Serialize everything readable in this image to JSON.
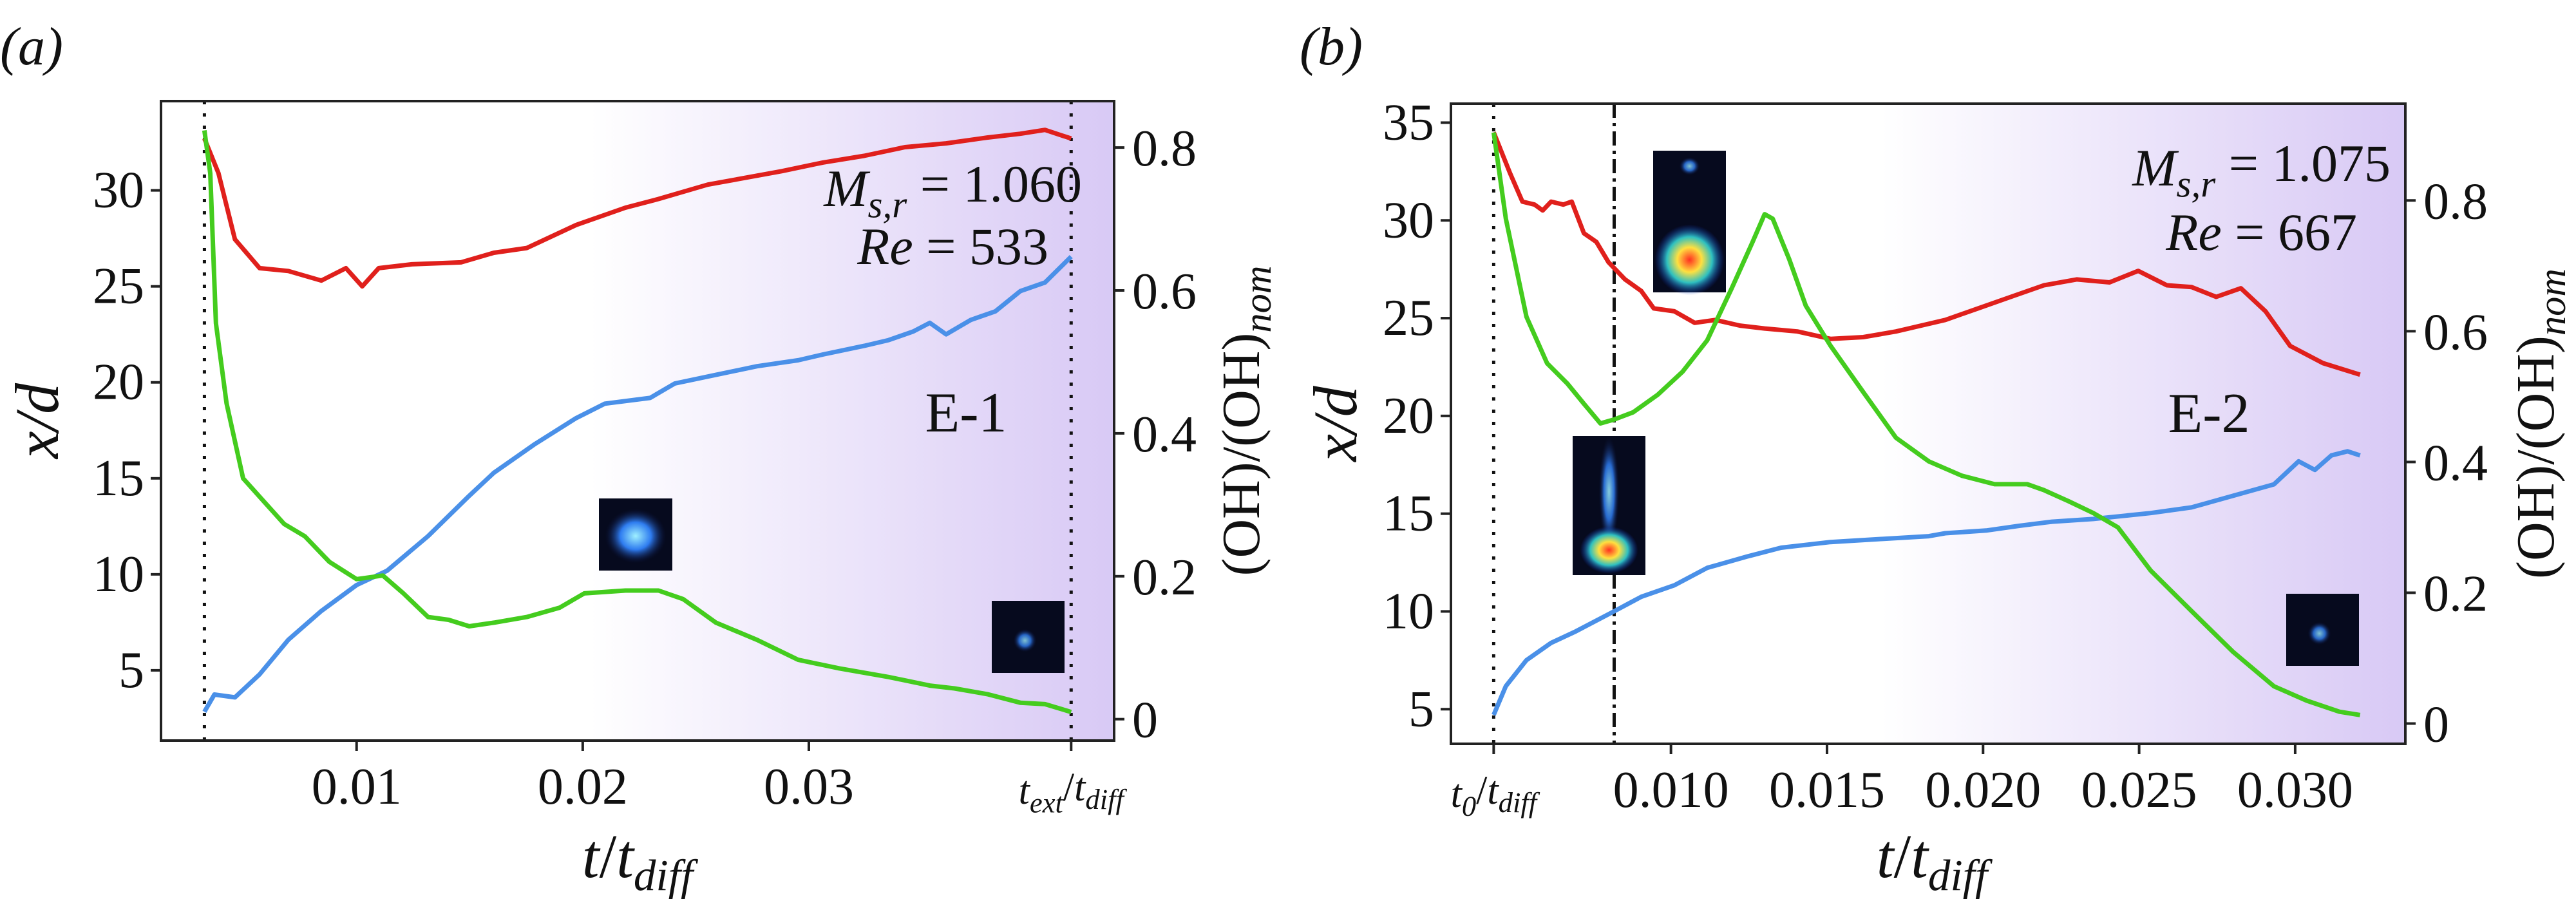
{
  "chart_data": [
    {
      "panel_label": "(a)",
      "type": "line",
      "xlabel": "t/t_diff",
      "ylabel_left": "x/d",
      "ylabel_right": "(OH)/(OH)_nom",
      "xlim": [
        0.00135,
        0.0435
      ],
      "ylim_left": [
        1.34,
        34.65
      ],
      "ylim_right": [
        -0.03,
        0.865
      ],
      "x_ticks": [
        {
          "v": 0.01,
          "label": "0.01"
        },
        {
          "v": 0.02,
          "label": "0.02"
        },
        {
          "v": 0.03,
          "label": "0.03"
        },
        {
          "v": 0.0416,
          "label": "t_ext/t_diff"
        }
      ],
      "y_ticks_left": [
        5,
        10,
        15,
        20,
        25,
        30
      ],
      "y_ticks_right": [
        {
          "v": 0,
          "label": "0"
        },
        {
          "v": 0.2,
          "label": "0.2"
        },
        {
          "v": 0.4,
          "label": "0.4"
        },
        {
          "v": 0.6,
          "label": "0.6"
        },
        {
          "v": 0.8,
          "label": "0.8"
        }
      ],
      "vlines": [
        {
          "x": 0.00327,
          "style": "dotted"
        },
        {
          "x": 0.0416,
          "style": "dotted"
        }
      ],
      "annotations": {
        "mach": "M_s,r = 1.060",
        "re": "Re = 533",
        "case": "E-1"
      },
      "background": "white-to-lavender gradient toward right",
      "insets": [
        "OH image (dome)",
        "OH image (faint kernel)"
      ],
      "series": [
        {
          "color": "#e0201c",
          "axis": "left",
          "t": [
            0.00327,
            0.00389,
            0.00462,
            0.00571,
            0.00698,
            0.00844,
            0.00953,
            0.01025,
            0.01098,
            0.01244,
            0.01462,
            0.01607,
            0.01753,
            0.01971,
            0.02189,
            0.02335,
            0.02553,
            0.0288,
            0.03062,
            0.03244,
            0.03425,
            0.03607,
            0.03789,
            0.03935,
            0.04044,
            0.0416
          ],
          "y": [
            32.7,
            30.9,
            27.45,
            25.95,
            25.8,
            25.3,
            25.95,
            25.0,
            25.95,
            26.15,
            26.25,
            26.75,
            27.0,
            28.2,
            29.1,
            29.55,
            30.3,
            31.0,
            31.45,
            31.8,
            32.25,
            32.45,
            32.75,
            32.95,
            33.15,
            32.7
          ]
        },
        {
          "color": "#4a90e8",
          "axis": "left",
          "t": [
            0.00327,
            0.00371,
            0.00462,
            0.00571,
            0.00698,
            0.00844,
            0.01,
            0.01135,
            0.01316,
            0.01498,
            0.01607,
            0.01789,
            0.01971,
            0.02098,
            0.02298,
            0.02407,
            0.02589,
            0.02771,
            0.02953,
            0.03062,
            0.03244,
            0.03353,
            0.03462,
            0.03535,
            0.03607,
            0.03716,
            0.03825,
            0.03935,
            0.04044,
            0.0416
          ],
          "y": [
            2.84,
            3.74,
            3.59,
            4.79,
            6.59,
            8.09,
            9.44,
            10.19,
            11.99,
            14.09,
            15.29,
            16.79,
            18.14,
            18.89,
            19.19,
            19.94,
            20.39,
            20.84,
            21.15,
            21.45,
            21.9,
            22.2,
            22.65,
            23.1,
            22.5,
            23.25,
            23.7,
            24.75,
            25.2,
            26.55
          ]
        },
        {
          "color": "#44cc1e",
          "axis": "right",
          "t": [
            0.00327,
            0.00353,
            0.00378,
            0.00425,
            0.00498,
            0.00589,
            0.0068,
            0.00771,
            0.0088,
            0.01,
            0.01116,
            0.01207,
            0.01316,
            0.01407,
            0.01498,
            0.01607,
            0.01753,
            0.01898,
            0.02007,
            0.02189,
            0.02335,
            0.02444,
            0.02589,
            0.02771,
            0.02953,
            0.03135,
            0.03353,
            0.03535,
            0.03644,
            0.03789,
            0.03935,
            0.04044,
            0.0416
          ],
          "y": [
            0.824,
            0.764,
            0.554,
            0.442,
            0.337,
            0.305,
            0.273,
            0.256,
            0.22,
            0.196,
            0.201,
            0.176,
            0.143,
            0.139,
            0.13,
            0.135,
            0.143,
            0.156,
            0.176,
            0.18,
            0.18,
            0.168,
            0.135,
            0.111,
            0.083,
            0.071,
            0.059,
            0.047,
            0.043,
            0.035,
            0.023,
            0.021,
            0.01
          ]
        }
      ]
    },
    {
      "panel_label": "(b)",
      "type": "line",
      "xlabel": "t/t_diff",
      "ylabel_left": "x/d",
      "ylabel_right": "(OH)/(OH)_nom",
      "xlim": [
        0.00295,
        0.03353
      ],
      "ylim_left": [
        3.23,
        35.97
      ],
      "ylim_right": [
        -0.031,
        0.948
      ],
      "x_ticks": [
        {
          "v": 0.00432,
          "label": "t_0/t_diff"
        },
        {
          "v": 0.01,
          "label": "0.010"
        },
        {
          "v": 0.015,
          "label": "0.015"
        },
        {
          "v": 0.02,
          "label": "0.020"
        },
        {
          "v": 0.025,
          "label": "0.025"
        },
        {
          "v": 0.03,
          "label": "0.030"
        }
      ],
      "y_ticks_left": [
        5,
        10,
        15,
        20,
        25,
        30,
        35
      ],
      "y_ticks_right": [
        {
          "v": 0,
          "label": "0"
        },
        {
          "v": 0.2,
          "label": "0.2"
        },
        {
          "v": 0.4,
          "label": "0.4"
        },
        {
          "v": 0.6,
          "label": "0.6"
        },
        {
          "v": 0.8,
          "label": "0.8"
        }
      ],
      "vlines": [
        {
          "x": 0.00432,
          "style": "dotted"
        },
        {
          "x": 0.00818,
          "style": "dashdot"
        }
      ],
      "annotations": {
        "mach": "M_s,r = 1.075",
        "re": "Re = 667",
        "case": "E-2"
      },
      "background": "white-to-lavender gradient toward right",
      "insets": [
        "OH image (bulb with kernel)",
        "OH image (elongated plume)",
        "OH image (faint kernel)"
      ],
      "series": [
        {
          "color": "#e0201c",
          "axis": "left",
          "t": [
            0.00432,
            0.00484,
            0.00524,
            0.00563,
            0.00589,
            0.00616,
            0.00655,
            0.00682,
            0.00721,
            0.00761,
            0.008,
            0.00853,
            0.00905,
            0.00945,
            0.01011,
            0.01076,
            0.01142,
            0.01221,
            0.013,
            0.01405,
            0.01511,
            0.01616,
            0.01721,
            0.01879,
            0.01984,
            0.02089,
            0.02195,
            0.023,
            0.02405,
            0.02497,
            0.02589,
            0.02668,
            0.02747,
            0.02826,
            0.02905,
            0.02984,
            0.03089,
            0.03208
          ],
          "y": [
            34.5,
            32.43,
            30.96,
            30.81,
            30.51,
            30.96,
            30.81,
            30.96,
            29.34,
            28.9,
            27.86,
            26.98,
            26.39,
            25.5,
            25.35,
            24.76,
            24.91,
            24.62,
            24.47,
            24.32,
            23.94,
            24.03,
            24.32,
            24.91,
            25.5,
            26.09,
            26.68,
            26.98,
            26.83,
            27.42,
            26.68,
            26.59,
            26.09,
            26.53,
            25.35,
            23.58,
            22.7,
            22.11
          ]
        },
        {
          "color": "#4a90e8",
          "axis": "left",
          "t": [
            0.00432,
            0.00471,
            0.00537,
            0.00616,
            0.00695,
            0.00818,
            0.00905,
            0.01011,
            0.01116,
            0.01247,
            0.01353,
            0.01511,
            0.01668,
            0.01826,
            0.01879,
            0.0201,
            0.02116,
            0.02221,
            0.02353,
            0.02537,
            0.02668,
            0.028,
            0.02932,
            0.03011,
            0.03063,
            0.03116,
            0.03168,
            0.03208
          ],
          "y": [
            4.71,
            6.18,
            7.51,
            8.39,
            8.98,
            10.01,
            10.75,
            11.34,
            12.23,
            12.82,
            13.26,
            13.55,
            13.7,
            13.85,
            14.0,
            14.14,
            14.38,
            14.59,
            14.73,
            15.03,
            15.32,
            15.91,
            16.5,
            17.68,
            17.24,
            17.98,
            18.19,
            17.98
          ]
        },
        {
          "color": "#44cc1e",
          "axis": "right",
          "t": [
            0.00432,
            0.00471,
            0.00537,
            0.00603,
            0.00668,
            0.00721,
            0.00774,
            0.00818,
            0.00879,
            0.00958,
            0.01037,
            0.01116,
            0.01195,
            0.01261,
            0.013,
            0.01326,
            0.01379,
            0.01432,
            0.01511,
            0.01616,
            0.01721,
            0.01826,
            0.01932,
            0.02037,
            0.02142,
            0.02195,
            0.02274,
            0.02353,
            0.02432,
            0.02537,
            0.02668,
            0.028,
            0.02932,
            0.03037,
            0.03142,
            0.03208
          ],
          "y": [
            0.904,
            0.772,
            0.622,
            0.551,
            0.52,
            0.489,
            0.459,
            0.465,
            0.476,
            0.503,
            0.538,
            0.586,
            0.666,
            0.736,
            0.779,
            0.772,
            0.71,
            0.639,
            0.578,
            0.507,
            0.437,
            0.401,
            0.379,
            0.366,
            0.366,
            0.357,
            0.34,
            0.322,
            0.3,
            0.234,
            0.172,
            0.11,
            0.057,
            0.035,
            0.018,
            0.013
          ]
        }
      ]
    }
  ]
}
